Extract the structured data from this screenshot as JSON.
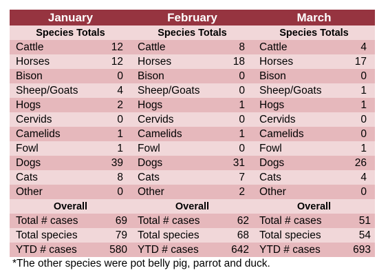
{
  "months": [
    "January",
    "February",
    "March"
  ],
  "species_totals_label": "Species Totals",
  "overall_label": "Overall",
  "species": [
    {
      "name": "Cattle",
      "values": [
        "12",
        "8",
        "4"
      ]
    },
    {
      "name": "Horses",
      "values": [
        "12",
        "18",
        "17"
      ]
    },
    {
      "name": "Bison",
      "values": [
        "0",
        "0",
        "0"
      ]
    },
    {
      "name": "Sheep/Goats",
      "values": [
        "4",
        "0",
        "1"
      ]
    },
    {
      "name": "Hogs",
      "values": [
        "2",
        "1",
        "1"
      ]
    },
    {
      "name": "Cervids",
      "values": [
        "0",
        "0",
        "0"
      ]
    },
    {
      "name": "Camelids",
      "values": [
        "1",
        "1",
        "0"
      ]
    },
    {
      "name": "Fowl",
      "values": [
        "1",
        "0",
        "1"
      ]
    },
    {
      "name": "Dogs",
      "values": [
        "39",
        "31",
        "26"
      ]
    },
    {
      "name": "Cats",
      "values": [
        "8",
        "7",
        "4"
      ]
    },
    {
      "name": "Other",
      "values": [
        "0",
        "2",
        "0"
      ]
    }
  ],
  "overall": [
    {
      "name": "Total # cases",
      "values": [
        "69",
        "62",
        "51"
      ]
    },
    {
      "name": "Total species",
      "values": [
        "79",
        "68",
        "54"
      ]
    },
    {
      "name": "YTD # cases",
      "values": [
        "580",
        "642",
        "693"
      ]
    }
  ],
  "footnote": "*The other species were pot belly pig, parrot and duck.",
  "colors": {
    "header": "#963440",
    "row_dark": "#e6b8bc",
    "row_light": "#f1d7d9",
    "header_text": "#ffffff"
  }
}
